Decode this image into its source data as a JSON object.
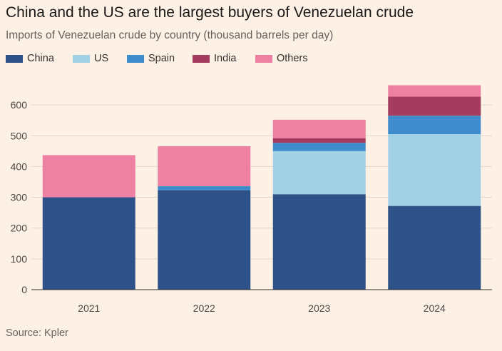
{
  "chart_data": {
    "type": "bar",
    "stacked": true,
    "title": "China and the US are the largest buyers of Venezuelan crude",
    "subtitle": "Imports of Venezuelan crude by country (thousand barrels per day)",
    "source": "Source: Kpler",
    "categories": [
      "2021",
      "2022",
      "2023",
      "2024"
    ],
    "series": [
      {
        "name": "China",
        "color": "#2e5288",
        "values": [
          300,
          323,
          310,
          272
        ]
      },
      {
        "name": "US",
        "color": "#a2d1e6",
        "values": [
          0,
          0,
          140,
          233
        ]
      },
      {
        "name": "Spain",
        "color": "#3f8ccc",
        "values": [
          0,
          13,
          27,
          60
        ]
      },
      {
        "name": "India",
        "color": "#a33c5e",
        "values": [
          0,
          0,
          15,
          62
        ]
      },
      {
        "name": "Others",
        "color": "#ee80a3",
        "values": [
          137,
          130,
          60,
          37
        ]
      }
    ],
    "ylim": [
      0,
      665
    ],
    "yticks": [
      "0",
      "100",
      "200",
      "300",
      "400",
      "500",
      "600"
    ],
    "grid": true,
    "legend_position": "top-left"
  }
}
